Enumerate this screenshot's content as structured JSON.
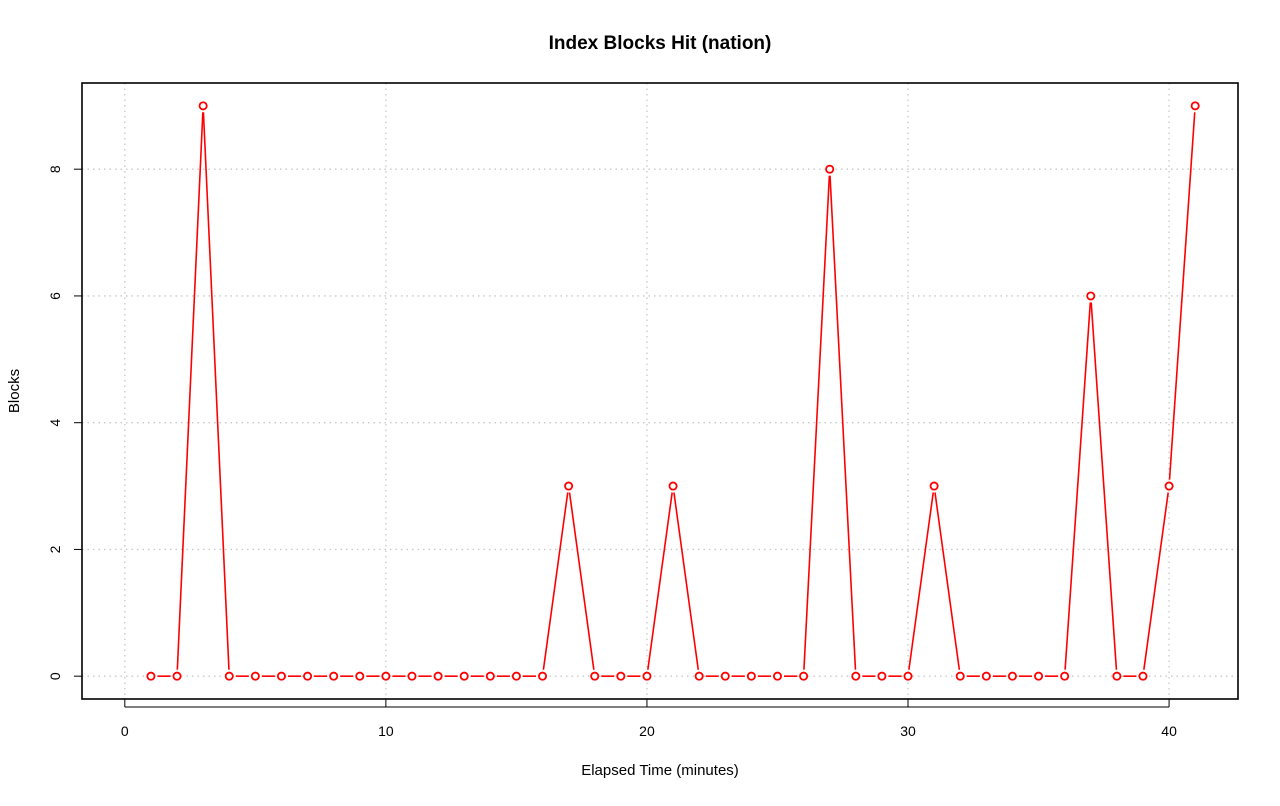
{
  "chart_data": {
    "type": "line",
    "title": "Index Blocks Hit (nation)",
    "xlabel": "Elapsed Time (minutes)",
    "ylabel": "Blocks",
    "xlim": [
      -1.64,
      42.64
    ],
    "ylim": [
      -0.36,
      9.36
    ],
    "x_ticks": [
      0,
      10,
      20,
      30,
      40
    ],
    "y_ticks": [
      0,
      2,
      4,
      6,
      8
    ],
    "grid": true,
    "series": [
      {
        "color": "#ff0000",
        "marker": "open-circle",
        "x": [
          1,
          2,
          3,
          4,
          5,
          6,
          7,
          8,
          9,
          10,
          11,
          12,
          13,
          14,
          15,
          16,
          17,
          18,
          19,
          20,
          21,
          22,
          23,
          24,
          25,
          26,
          27,
          28,
          29,
          30,
          31,
          32,
          33,
          34,
          35,
          36,
          37,
          38,
          39,
          40,
          41
        ],
        "values": [
          0,
          0,
          9,
          0,
          0,
          0,
          0,
          0,
          0,
          0,
          0,
          0,
          0,
          0,
          0,
          0,
          3,
          0,
          0,
          0,
          3,
          0,
          0,
          0,
          0,
          0,
          8,
          0,
          0,
          0,
          3,
          0,
          0,
          0,
          0,
          0,
          6,
          0,
          0,
          3,
          9
        ]
      }
    ]
  }
}
